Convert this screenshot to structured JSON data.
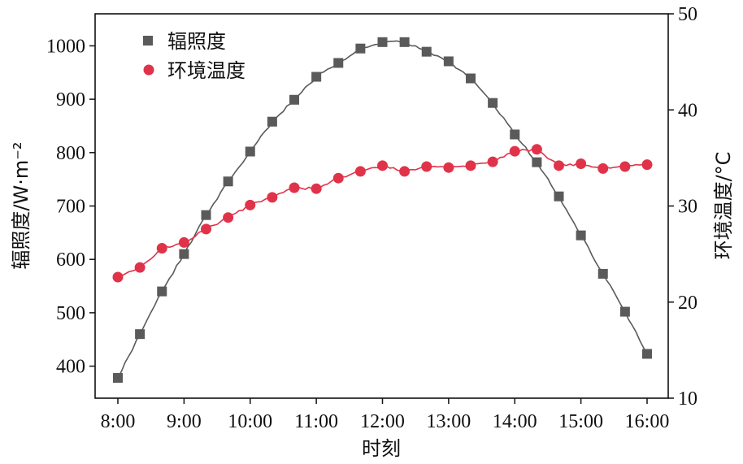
{
  "chart_data": {
    "type": "line",
    "x_tick_labels": [
      "8:00",
      "9:00",
      "10:00",
      "11:00",
      "12:00",
      "13:00",
      "14:00",
      "15:00",
      "16:00"
    ],
    "xlabel": "时刻",
    "ylabel_left": "辐照度/W·m⁻²",
    "ylabel_right": "环境温度/°C",
    "ylim_left": [
      340,
      1060
    ],
    "ylim_right": [
      10,
      50
    ],
    "y_ticks_left": [
      400,
      500,
      600,
      700,
      800,
      900,
      1000
    ],
    "y_ticks_right": [
      10,
      20,
      30,
      40,
      50
    ],
    "grid": false,
    "legend_position": "top-left",
    "series": [
      {
        "name": "辐照度",
        "axis": "left",
        "color": "#5a5a5a",
        "marker": "square",
        "x": [
          "8:00",
          "8:20",
          "8:40",
          "9:00",
          "9:20",
          "9:40",
          "10:00",
          "10:20",
          "10:40",
          "11:00",
          "11:20",
          "11:40",
          "12:00",
          "12:20",
          "12:40",
          "13:00",
          "13:20",
          "13:40",
          "14:00",
          "14:20",
          "14:40",
          "15:00",
          "15:20",
          "15:40",
          "16:00"
        ],
        "values": [
          378,
          460,
          540,
          610,
          683,
          746,
          802,
          858,
          899,
          942,
          968,
          995,
          1007,
          1007,
          989,
          971,
          939,
          893,
          834,
          782,
          718,
          645,
          573,
          502,
          423
        ]
      },
      {
        "name": "环境温度",
        "axis": "right",
        "color": "#e0334a",
        "marker": "circle",
        "x": [
          "8:00",
          "8:20",
          "8:40",
          "9:00",
          "9:20",
          "9:40",
          "10:00",
          "10:20",
          "10:40",
          "11:00",
          "11:20",
          "11:40",
          "12:00",
          "12:20",
          "12:40",
          "13:00",
          "13:20",
          "13:40",
          "14:00",
          "14:20",
          "14:40",
          "15:00",
          "15:20",
          "15:40",
          "16:00"
        ],
        "values": [
          22.6,
          23.6,
          25.6,
          26.2,
          27.6,
          28.8,
          30.1,
          30.9,
          31.9,
          31.8,
          32.9,
          33.6,
          34.2,
          33.6,
          34.1,
          34.0,
          34.2,
          34.6,
          35.7,
          35.9,
          34.2,
          34.4,
          33.9,
          34.1,
          34.3
        ]
      }
    ]
  }
}
